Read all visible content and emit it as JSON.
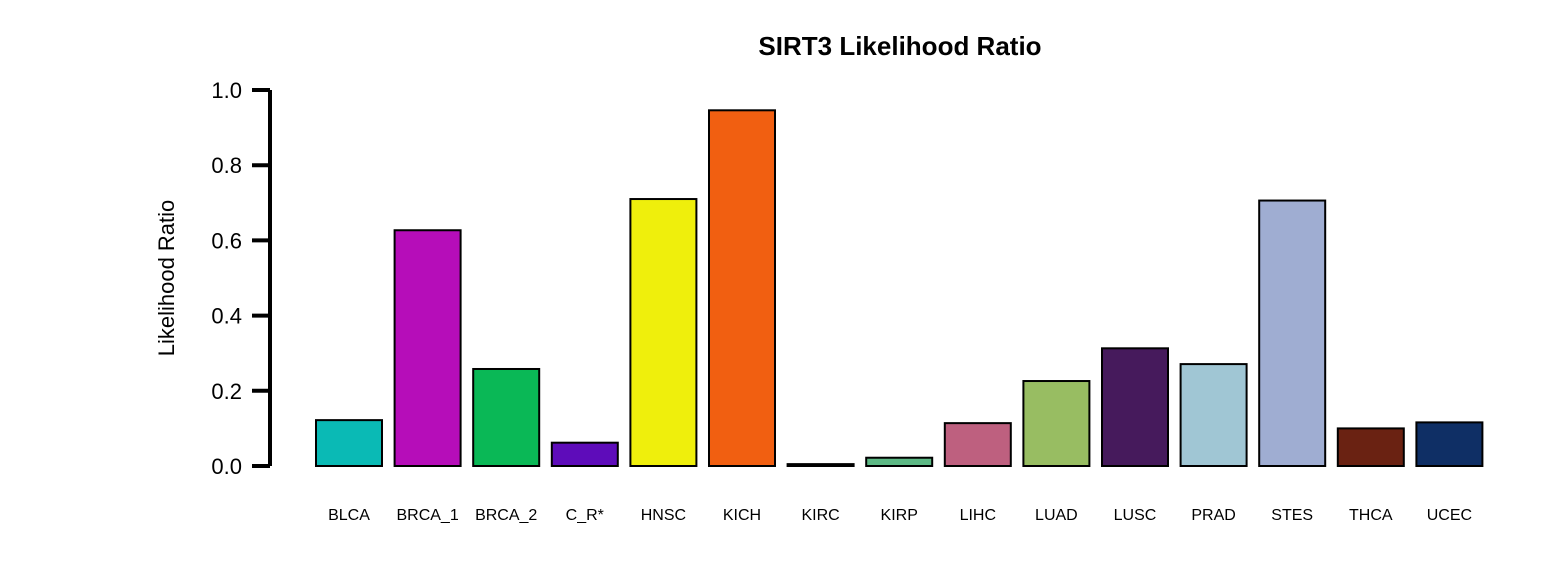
{
  "chart_data": {
    "type": "bar",
    "title": "SIRT3 Likelihood Ratio",
    "xlabel": "",
    "ylabel": "Likelihood Ratio",
    "ylim": [
      0,
      1.0
    ],
    "yticks": [
      "0.0",
      "0.2",
      "0.4",
      "0.6",
      "0.8",
      "1.0"
    ],
    "grid": false,
    "categories": [
      "BLCA",
      "BRCA_1",
      "BRCA_2",
      "C_R*",
      "HNSC",
      "KICH",
      "KIRC",
      "KIRP",
      "LIHC",
      "LUAD",
      "LUSC",
      "PRAD",
      "STES",
      "THCA",
      "UCEC"
    ],
    "values": [
      0.122,
      0.627,
      0.258,
      0.062,
      0.71,
      0.946,
      0.005,
      0.022,
      0.114,
      0.226,
      0.313,
      0.271,
      0.706,
      0.1,
      0.116
    ],
    "colors": [
      "#0ABAB5",
      "#B60DB9",
      "#0AB856",
      "#5E0CBA",
      "#EFEF0C",
      "#F15F11",
      "#1E1E1E",
      "#5DB985",
      "#BE607F",
      "#98BD62",
      "#461A5C",
      "#A0C6D4",
      "#9FADD2",
      "#6A2212",
      "#0F2F65"
    ]
  }
}
